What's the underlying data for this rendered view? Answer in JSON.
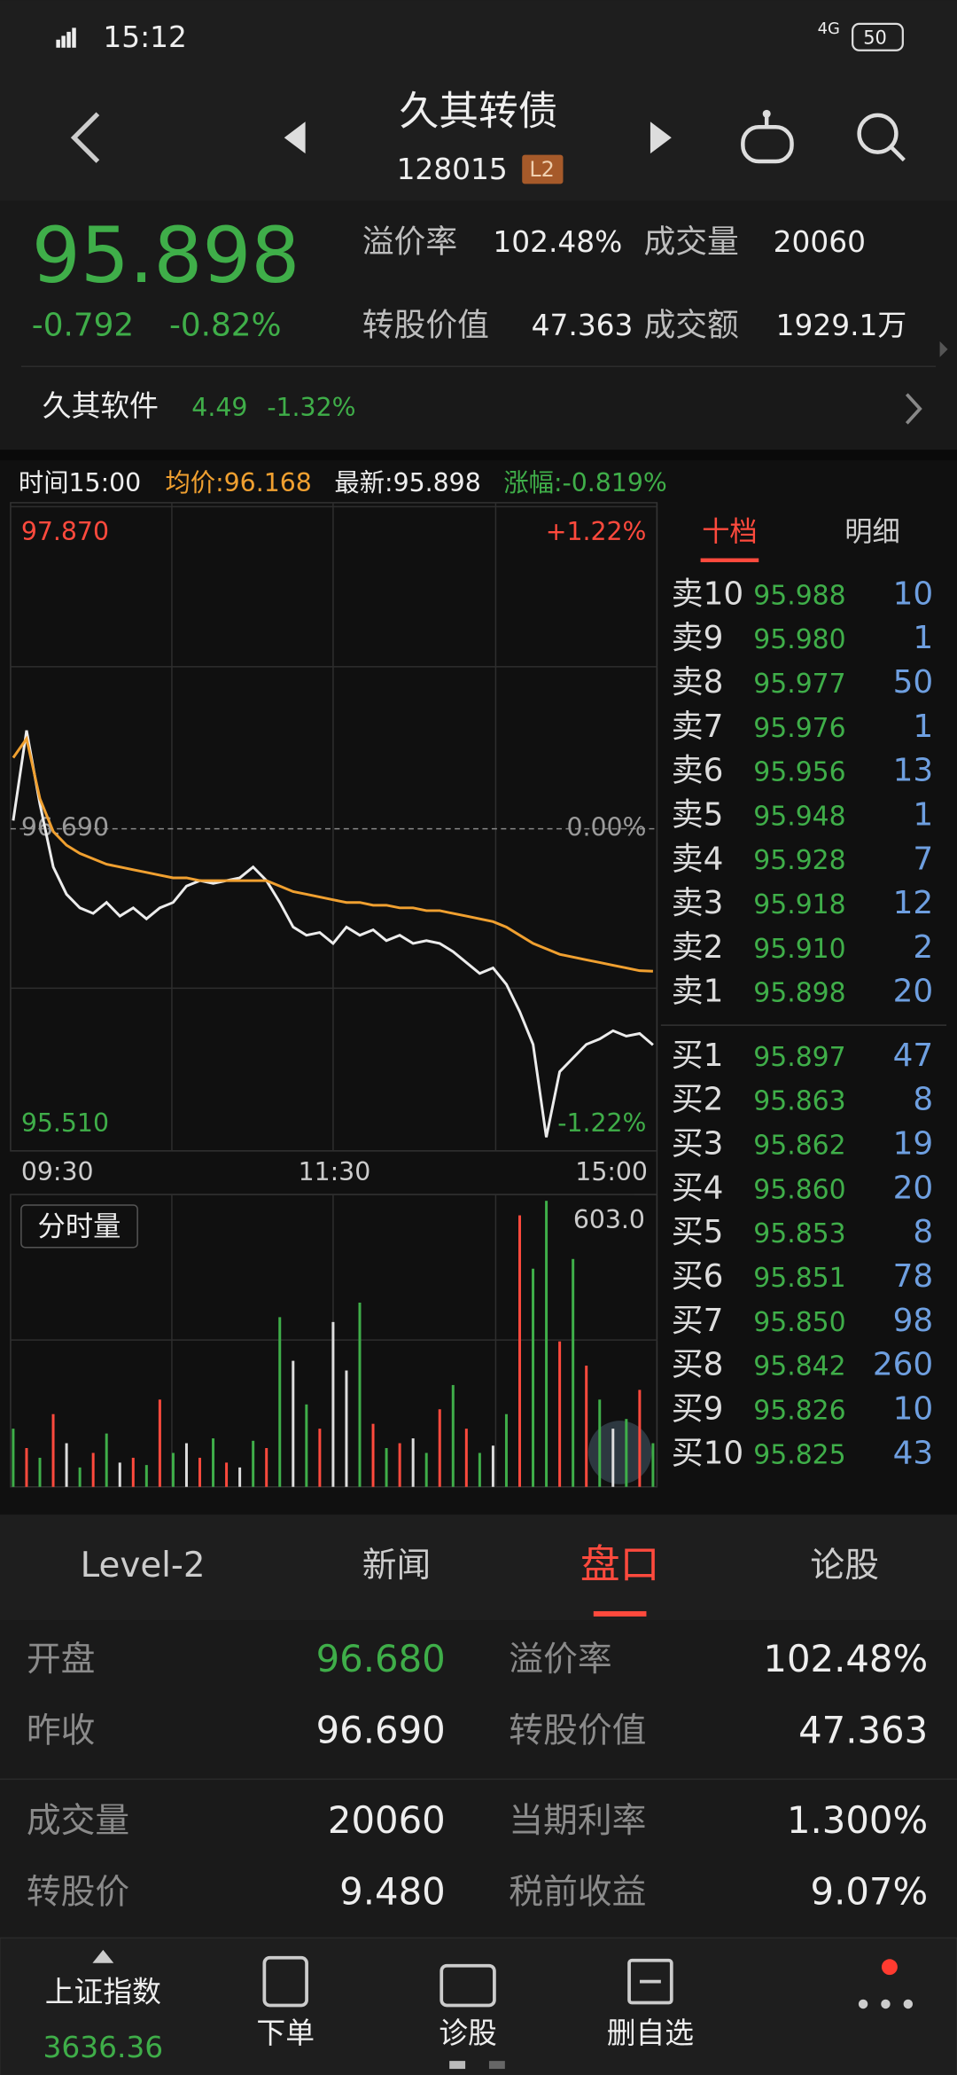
{
  "status_bar": {
    "time": "15:12",
    "network": "4G",
    "battery": "50"
  },
  "header": {
    "title": "久其转债",
    "code": "128015",
    "badge": "L2"
  },
  "quote": {
    "price": "95.898",
    "change": "-0.792",
    "change_pct": "-0.82%",
    "stats": [
      {
        "label": "溢价率",
        "value": "102.48%"
      },
      {
        "label": "成交量",
        "value": "20060"
      },
      {
        "label": "转股价值",
        "value": "47.363"
      },
      {
        "label": "成交额",
        "value": "1929.1万"
      }
    ]
  },
  "underlying": {
    "name": "久其软件",
    "price": "4.49",
    "change_pct": "-1.32%"
  },
  "info_bar": [
    "时间15:00",
    "均价:96.168",
    "最新:95.898",
    "涨幅:-0.819%"
  ],
  "price_chart": {
    "type": "line",
    "grid": true,
    "time_labels": [
      "09:30",
      "11:30",
      "15:00"
    ],
    "ylim": [
      95.51,
      97.87
    ],
    "yticks": [
      {
        "value": 97.87,
        "label": "97.870"
      },
      {
        "value": 96.69,
        "label": "96.690"
      },
      {
        "value": 95.51,
        "label": "95.510"
      }
    ],
    "y2lim": [
      -1.22,
      1.22
    ],
    "y2ticks": [
      {
        "value": 1.22,
        "label": "+1.22%"
      },
      {
        "value": 0,
        "label": "0.00%"
      },
      {
        "value": -1.22,
        "label": "-1.22%"
      }
    ],
    "series": [
      {
        "color": "#ececec",
        "values": [
          96.72,
          97.05,
          96.78,
          96.55,
          96.45,
          96.4,
          96.38,
          96.42,
          96.37,
          96.4,
          96.36,
          96.4,
          96.42,
          96.48,
          96.5,
          96.49,
          96.5,
          96.51,
          96.55,
          96.5,
          96.42,
          96.33,
          96.3,
          96.31,
          96.27,
          96.33,
          96.3,
          96.32,
          96.28,
          96.3,
          96.27,
          96.28,
          96.27,
          96.24,
          96.2,
          96.16,
          96.18,
          96.12,
          96.02,
          95.9,
          95.56,
          95.8,
          95.85,
          95.9,
          95.92,
          95.95,
          95.93,
          95.94,
          95.898
        ]
      },
      {
        "color": "#f0a030",
        "values": [
          96.95,
          97.02,
          96.8,
          96.68,
          96.63,
          96.6,
          96.58,
          96.56,
          96.55,
          96.54,
          96.53,
          96.52,
          96.51,
          96.51,
          96.5,
          96.5,
          96.5,
          96.5,
          96.5,
          96.5,
          96.48,
          96.46,
          96.45,
          96.44,
          96.43,
          96.42,
          96.42,
          96.41,
          96.41,
          96.4,
          96.4,
          96.39,
          96.39,
          96.38,
          96.37,
          96.36,
          96.35,
          96.33,
          96.3,
          96.27,
          96.25,
          96.23,
          96.22,
          96.21,
          96.2,
          96.19,
          96.18,
          96.17,
          96.168
        ]
      }
    ]
  },
  "volume_chart": {
    "type": "bar",
    "label": "分时量",
    "ylim": [
      0,
      603
    ],
    "yticks": [
      {
        "value": 603,
        "label": "603.0"
      }
    ],
    "values": [
      120,
      80,
      60,
      150,
      90,
      40,
      70,
      110,
      50,
      60,
      45,
      180,
      70,
      90,
      60,
      100,
      50,
      40,
      95,
      80,
      350,
      260,
      170,
      120,
      340,
      240,
      380,
      130,
      80,
      90,
      100,
      70,
      160,
      210,
      120,
      70,
      85,
      150,
      560,
      450,
      590,
      300,
      470,
      250,
      180,
      120,
      140,
      200,
      90
    ],
    "colors": [
      "#3fae49",
      "#ff4a3d",
      "#3fae49",
      "#ff4a3d",
      "#dddddd",
      "#3fae49",
      "#ff4a3d",
      "#3fae49",
      "#dddddd",
      "#ff4a3d",
      "#3fae49",
      "#ff4a3d",
      "#3fae49",
      "#dddddd",
      "#ff4a3d",
      "#3fae49",
      "#ff4a3d",
      "#dddddd",
      "#3fae49",
      "#ff4a3d",
      "#3fae49",
      "#dddddd",
      "#3fae49",
      "#ff4a3d",
      "#dddddd",
      "#dddddd",
      "#3fae49",
      "#ff4a3d",
      "#3fae49",
      "#ff4a3d",
      "#dddddd",
      "#3fae49",
      "#ff4a3d",
      "#3fae49",
      "#ff4a3d",
      "#3fae49",
      "#dddddd",
      "#3fae49",
      "#ff4a3d",
      "#3fae49",
      "#3fae49",
      "#ff4a3d",
      "#3fae49",
      "#ff4a3d",
      "#3fae49",
      "#dddddd",
      "#3fae49",
      "#ff4a3d",
      "#3fae49"
    ]
  },
  "order_book": {
    "tabs": [
      "十档",
      "明细"
    ],
    "active_tab": 0,
    "asks": [
      {
        "label": "卖10",
        "price": "95.988",
        "volume": "10"
      },
      {
        "label": "卖9",
        "price": "95.980",
        "volume": "1"
      },
      {
        "label": "卖8",
        "price": "95.977",
        "volume": "50"
      },
      {
        "label": "卖7",
        "price": "95.976",
        "volume": "1"
      },
      {
        "label": "卖6",
        "price": "95.956",
        "volume": "13"
      },
      {
        "label": "卖5",
        "price": "95.948",
        "volume": "1"
      },
      {
        "label": "卖4",
        "price": "95.928",
        "volume": "7"
      },
      {
        "label": "卖3",
        "price": "95.918",
        "volume": "12"
      },
      {
        "label": "卖2",
        "price": "95.910",
        "volume": "2"
      },
      {
        "label": "卖1",
        "price": "95.898",
        "volume": "20"
      }
    ],
    "bids": [
      {
        "label": "买1",
        "price": "95.897",
        "volume": "47"
      },
      {
        "label": "买2",
        "price": "95.863",
        "volume": "8"
      },
      {
        "label": "买3",
        "price": "95.862",
        "volume": "19"
      },
      {
        "label": "买4",
        "price": "95.860",
        "volume": "20"
      },
      {
        "label": "买5",
        "price": "95.853",
        "volume": "8"
      },
      {
        "label": "买6",
        "price": "95.851",
        "volume": "78"
      },
      {
        "label": "买7",
        "price": "95.850",
        "volume": "98"
      },
      {
        "label": "买8",
        "price": "95.842",
        "volume": "260"
      },
      {
        "label": "买9",
        "price": "95.826",
        "volume": "10"
      },
      {
        "label": "买10",
        "price": "95.825",
        "volume": "43"
      }
    ]
  },
  "tabs": {
    "items": [
      "Level-2",
      "新闻",
      "盘口",
      "论股"
    ],
    "active": 2
  },
  "stats_table": {
    "rows": [
      [
        "开盘",
        "96.680",
        "溢价率",
        "102.48%"
      ],
      [
        "昨收",
        "96.690",
        "转股价值",
        "47.363"
      ],
      [
        "成交量",
        "20060",
        "当期利率",
        "1.300%"
      ],
      [
        "转股价",
        "9.480",
        "税前收益",
        "9.07%"
      ]
    ]
  },
  "bottom_nav": {
    "index_name": "上证指数",
    "index_value": "3636.36",
    "items": [
      "下单",
      "诊股",
      "删自选"
    ]
  }
}
